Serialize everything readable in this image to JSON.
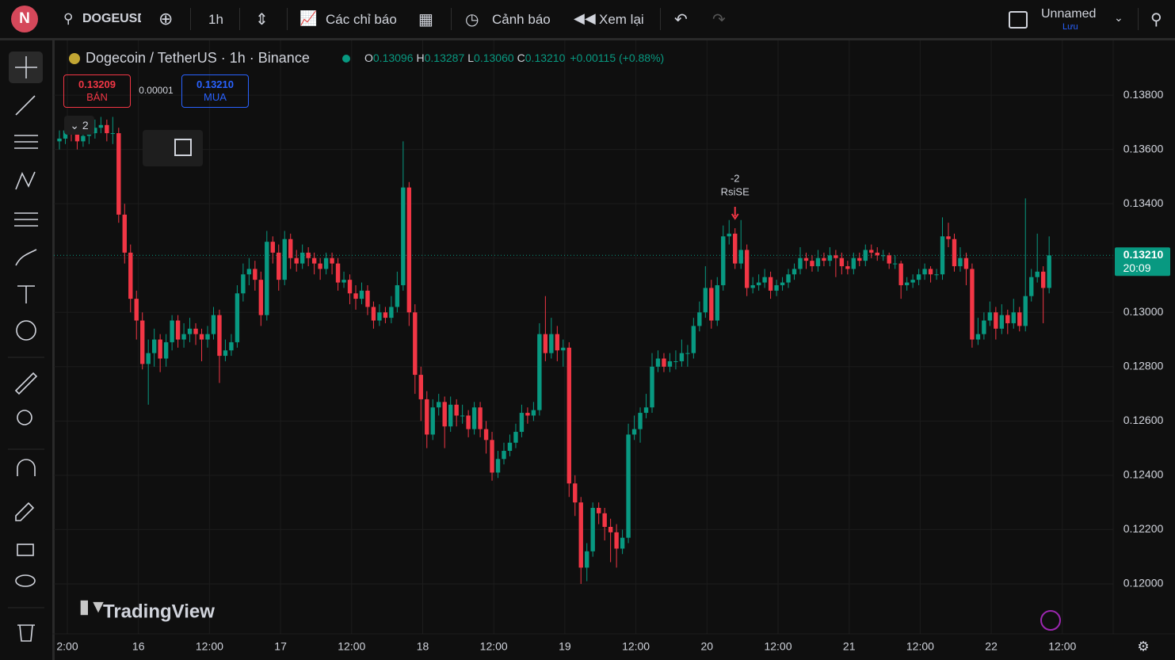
{
  "toolbar": {
    "avatar": "N",
    "symbol": "DOGEUSD",
    "interval": "1h",
    "indicators": "Các chỉ báo",
    "alerts": "Cảnh báo",
    "replay": "Xem lại",
    "layout_name": "Unnamed",
    "save": "Lưu"
  },
  "legend": {
    "title": "Dogecoin / TetherUS · 1h · Binance",
    "o_label": "O",
    "o": "0.13096",
    "h_label": "H",
    "h": "0.13287",
    "l_label": "L",
    "l": "0.13060",
    "c_label": "C",
    "c": "0.13210",
    "change": "+0.00115 (+0.88%)"
  },
  "trade": {
    "sell_price": "0.13209",
    "sell": "BÁN",
    "spread": "0.00001",
    "buy_price": "0.13210",
    "buy": "MUA"
  },
  "indicator_count": "2",
  "watermark": "TradingView",
  "chart_data": {
    "type": "candlestick",
    "up_color": "#089981",
    "down_color": "#f23645",
    "ylim": [
      0.11816,
      0.1399
    ],
    "yticks": [
      {
        "value": 0.12,
        "label": "0.12000"
      },
      {
        "value": 0.122,
        "label": "0.12200"
      },
      {
        "value": 0.124,
        "label": "0.12400"
      },
      {
        "value": 0.126,
        "label": "0.12600"
      },
      {
        "value": 0.128,
        "label": "0.12800"
      },
      {
        "value": 0.13,
        "label": "0.13000"
      },
      {
        "value": 0.132,
        "label": "0.13200"
      },
      {
        "value": 0.134,
        "label": "0.13400"
      },
      {
        "value": 0.136,
        "label": "0.13600"
      },
      {
        "value": 0.138,
        "label": "0.13800"
      }
    ],
    "x_labels": [
      "2:00",
      "16",
      "12:00",
      "17",
      "12:00",
      "18",
      "12:00",
      "19",
      "12:00",
      "20",
      "12:00",
      "21",
      "12:00",
      "22",
      "12:00"
    ],
    "last_price": {
      "value": 0.1321,
      "label": "0.13210",
      "countdown": "20:09"
    },
    "annotation": {
      "value": "-2",
      "label": "RsiSE"
    },
    "candles": [
      [
        0.1363,
        0.1367,
        0.136,
        0.1364
      ],
      [
        0.1364,
        0.1369,
        0.1362,
        0.1367
      ],
      [
        0.1367,
        0.1369,
        0.1363,
        0.1366
      ],
      [
        0.1366,
        0.1368,
        0.136,
        0.1363
      ],
      [
        0.1363,
        0.1367,
        0.1361,
        0.1365
      ],
      [
        0.1365,
        0.1368,
        0.1362,
        0.1366
      ],
      [
        0.1366,
        0.1371,
        0.1364,
        0.1368
      ],
      [
        0.1368,
        0.1372,
        0.1366,
        0.1369
      ],
      [
        0.1369,
        0.1371,
        0.1363,
        0.1366
      ],
      [
        0.1366,
        0.1372,
        0.1362,
        0.1366
      ],
      [
        0.1366,
        0.1368,
        0.1333,
        0.1336
      ],
      [
        0.1336,
        0.134,
        0.1318,
        0.1322
      ],
      [
        0.1322,
        0.1325,
        0.13,
        0.1305
      ],
      [
        0.1305,
        0.1308,
        0.129,
        0.1297
      ],
      [
        0.1297,
        0.13,
        0.1279,
        0.1281
      ],
      [
        0.1281,
        0.129,
        0.1266,
        0.1285
      ],
      [
        0.1285,
        0.1294,
        0.128,
        0.129
      ],
      [
        0.129,
        0.1292,
        0.1278,
        0.1283
      ],
      [
        0.1283,
        0.1292,
        0.128,
        0.1289
      ],
      [
        0.1289,
        0.1299,
        0.1286,
        0.1297
      ],
      [
        0.1297,
        0.1299,
        0.1287,
        0.129
      ],
      [
        0.129,
        0.1296,
        0.1287,
        0.1292
      ],
      [
        0.1292,
        0.1298,
        0.1289,
        0.1294
      ],
      [
        0.1294,
        0.1296,
        0.1288,
        0.1292
      ],
      [
        0.1292,
        0.1294,
        0.1282,
        0.129
      ],
      [
        0.129,
        0.1295,
        0.1287,
        0.1292
      ],
      [
        0.1292,
        0.1302,
        0.129,
        0.1299
      ],
      [
        0.1299,
        0.1301,
        0.1274,
        0.1284
      ],
      [
        0.1284,
        0.129,
        0.1282,
        0.1286
      ],
      [
        0.1286,
        0.1292,
        0.1284,
        0.1289
      ],
      [
        0.1289,
        0.131,
        0.1287,
        0.1307
      ],
      [
        0.1307,
        0.1318,
        0.1304,
        0.1314
      ],
      [
        0.1314,
        0.132,
        0.131,
        0.1316
      ],
      [
        0.1316,
        0.1319,
        0.1308,
        0.1312
      ],
      [
        0.1312,
        0.1315,
        0.1295,
        0.1299
      ],
      [
        0.1299,
        0.133,
        0.1297,
        0.1326
      ],
      [
        0.1326,
        0.1328,
        0.1318,
        0.1322
      ],
      [
        0.1322,
        0.1325,
        0.1308,
        0.1312
      ],
      [
        0.1312,
        0.133,
        0.131,
        0.1327
      ],
      [
        0.1327,
        0.1329,
        0.1316,
        0.132
      ],
      [
        0.132,
        0.1323,
        0.1315,
        0.1318
      ],
      [
        0.1318,
        0.1325,
        0.1316,
        0.1322
      ],
      [
        0.1322,
        0.1324,
        0.1317,
        0.132
      ],
      [
        0.132,
        0.1322,
        0.1314,
        0.1318
      ],
      [
        0.1318,
        0.132,
        0.1312,
        0.1316
      ],
      [
        0.1316,
        0.1322,
        0.1314,
        0.132
      ],
      [
        0.132,
        0.1322,
        0.1314,
        0.1318
      ],
      [
        0.1318,
        0.132,
        0.1308,
        0.1311
      ],
      [
        0.1311,
        0.1315,
        0.1309,
        0.1312
      ],
      [
        0.1312,
        0.1314,
        0.1303,
        0.1307
      ],
      [
        0.1307,
        0.131,
        0.1301,
        0.1305
      ],
      [
        0.1305,
        0.1311,
        0.1303,
        0.1308
      ],
      [
        0.1308,
        0.131,
        0.1299,
        0.1302
      ],
      [
        0.1302,
        0.1304,
        0.1294,
        0.1297
      ],
      [
        0.1297,
        0.1303,
        0.1295,
        0.13
      ],
      [
        0.13,
        0.1302,
        0.1296,
        0.1298
      ],
      [
        0.1298,
        0.1306,
        0.1296,
        0.1302
      ],
      [
        0.1302,
        0.1315,
        0.13,
        0.131
      ],
      [
        0.131,
        0.1363,
        0.1308,
        0.1346
      ],
      [
        0.1346,
        0.1348,
        0.1295,
        0.13
      ],
      [
        0.13,
        0.1303,
        0.127,
        0.1277
      ],
      [
        0.1277,
        0.128,
        0.126,
        0.1268
      ],
      [
        0.1268,
        0.1271,
        0.125,
        0.1255
      ],
      [
        0.1255,
        0.1268,
        0.1253,
        0.1265
      ],
      [
        0.1265,
        0.127,
        0.1262,
        0.1267
      ],
      [
        0.1267,
        0.1269,
        0.125,
        0.1258
      ],
      [
        0.1258,
        0.1269,
        0.1256,
        0.1266
      ],
      [
        0.1266,
        0.1268,
        0.1258,
        0.1262
      ],
      [
        0.1262,
        0.1266,
        0.1259,
        0.1262
      ],
      [
        0.1262,
        0.1264,
        0.1254,
        0.1257
      ],
      [
        0.1257,
        0.1267,
        0.1255,
        0.1265
      ],
      [
        0.1265,
        0.1267,
        0.1254,
        0.1257
      ],
      [
        0.1257,
        0.126,
        0.1248,
        0.1253
      ],
      [
        0.1253,
        0.1256,
        0.1238,
        0.1241
      ],
      [
        0.1241,
        0.1249,
        0.1239,
        0.1246
      ],
      [
        0.1246,
        0.1252,
        0.1244,
        0.1249
      ],
      [
        0.1249,
        0.1255,
        0.1247,
        0.1252
      ],
      [
        0.1252,
        0.1259,
        0.125,
        0.1256
      ],
      [
        0.1256,
        0.1266,
        0.1254,
        0.1263
      ],
      [
        0.1263,
        0.1265,
        0.1259,
        0.1262
      ],
      [
        0.1262,
        0.1267,
        0.126,
        0.1264
      ],
      [
        0.1264,
        0.1296,
        0.1262,
        0.1292
      ],
      [
        0.1292,
        0.1306,
        0.1282,
        0.1285
      ],
      [
        0.1285,
        0.1298,
        0.1283,
        0.1292
      ],
      [
        0.1292,
        0.1295,
        0.1282,
        0.1286
      ],
      [
        0.1286,
        0.129,
        0.128,
        0.1287
      ],
      [
        0.1287,
        0.1289,
        0.1232,
        0.1237
      ],
      [
        0.1237,
        0.124,
        0.1225,
        0.123
      ],
      [
        0.123,
        0.1232,
        0.12,
        0.1206
      ],
      [
        0.1206,
        0.1215,
        0.1201,
        0.1212
      ],
      [
        0.1212,
        0.123,
        0.121,
        0.1228
      ],
      [
        0.1228,
        0.123,
        0.1222,
        0.1226
      ],
      [
        0.1226,
        0.1228,
        0.1216,
        0.1221
      ],
      [
        0.1221,
        0.1224,
        0.1208,
        0.1219
      ],
      [
        0.1219,
        0.1222,
        0.1206,
        0.1213
      ],
      [
        0.1213,
        0.122,
        0.1211,
        0.1217
      ],
      [
        0.1217,
        0.1259,
        0.1215,
        0.1255
      ],
      [
        0.1255,
        0.1262,
        0.1253,
        0.1257
      ],
      [
        0.1257,
        0.1265,
        0.1252,
        0.1263
      ],
      [
        0.1263,
        0.127,
        0.1261,
        0.1265
      ],
      [
        0.1265,
        0.1285,
        0.1263,
        0.128
      ],
      [
        0.128,
        0.1286,
        0.1278,
        0.1283
      ],
      [
        0.1283,
        0.1285,
        0.1278,
        0.128
      ],
      [
        0.128,
        0.1285,
        0.1278,
        0.1282
      ],
      [
        0.1282,
        0.1286,
        0.1279,
        0.1282
      ],
      [
        0.1282,
        0.129,
        0.128,
        0.1285
      ],
      [
        0.1285,
        0.1288,
        0.128,
        0.1285
      ],
      [
        0.1285,
        0.1298,
        0.1283,
        0.1295
      ],
      [
        0.1295,
        0.1304,
        0.1293,
        0.13
      ],
      [
        0.13,
        0.1317,
        0.1298,
        0.1309
      ],
      [
        0.1309,
        0.1312,
        0.1294,
        0.1297
      ],
      [
        0.1297,
        0.1313,
        0.1295,
        0.131
      ],
      [
        0.131,
        0.1332,
        0.1308,
        0.1328
      ],
      [
        0.1328,
        0.1334,
        0.1325,
        0.1329
      ],
      [
        0.1329,
        0.1331,
        0.1316,
        0.1318
      ],
      [
        0.1318,
        0.1334,
        0.1316,
        0.1323
      ],
      [
        0.1323,
        0.1325,
        0.1306,
        0.1309
      ],
      [
        0.1309,
        0.1313,
        0.1307,
        0.131
      ],
      [
        0.131,
        0.1314,
        0.1308,
        0.1311
      ],
      [
        0.1311,
        0.1316,
        0.1309,
        0.1313
      ],
      [
        0.1313,
        0.1315,
        0.1305,
        0.1308
      ],
      [
        0.1308,
        0.1312,
        0.1306,
        0.131
      ],
      [
        0.131,
        0.1313,
        0.1308,
        0.1311
      ],
      [
        0.1311,
        0.1316,
        0.1309,
        0.1314
      ],
      [
        0.1314,
        0.1318,
        0.1312,
        0.1316
      ],
      [
        0.1316,
        0.1324,
        0.1314,
        0.132
      ],
      [
        0.132,
        0.1322,
        0.1316,
        0.1319
      ],
      [
        0.1319,
        0.1321,
        0.1315,
        0.1317
      ],
      [
        0.1317,
        0.1323,
        0.1315,
        0.132
      ],
      [
        0.132,
        0.1322,
        0.1317,
        0.1319
      ],
      [
        0.1319,
        0.1324,
        0.1317,
        0.1321
      ],
      [
        0.1321,
        0.1323,
        0.1313,
        0.132
      ],
      [
        0.132,
        0.1322,
        0.1314,
        0.1317
      ],
      [
        0.1317,
        0.1319,
        0.1314,
        0.1316
      ],
      [
        0.1316,
        0.1322,
        0.1314,
        0.132
      ],
      [
        0.132,
        0.1322,
        0.1317,
        0.1319
      ],
      [
        0.1319,
        0.1325,
        0.1317,
        0.1323
      ],
      [
        0.1323,
        0.1325,
        0.132,
        0.1322
      ],
      [
        0.1322,
        0.1324,
        0.1319,
        0.1321
      ],
      [
        0.1321,
        0.1323,
        0.1319,
        0.1321
      ],
      [
        0.1321,
        0.1322,
        0.1316,
        0.1318
      ],
      [
        0.1318,
        0.1321,
        0.1316,
        0.1318
      ],
      [
        0.1318,
        0.1319,
        0.1305,
        0.131
      ],
      [
        0.131,
        0.1313,
        0.1308,
        0.1311
      ],
      [
        0.1311,
        0.1314,
        0.1309,
        0.1312
      ],
      [
        0.1312,
        0.1316,
        0.131,
        0.1314
      ],
      [
        0.1314,
        0.1318,
        0.1312,
        0.1316
      ],
      [
        0.1316,
        0.1317,
        0.1311,
        0.1314
      ],
      [
        0.1314,
        0.1316,
        0.1312,
        0.1314
      ],
      [
        0.1314,
        0.1335,
        0.1312,
        0.1328
      ],
      [
        0.1328,
        0.1333,
        0.1324,
        0.1327
      ],
      [
        0.1327,
        0.1329,
        0.1315,
        0.1317
      ],
      [
        0.1317,
        0.1324,
        0.1315,
        0.132
      ],
      [
        0.132,
        0.1322,
        0.131,
        0.1316
      ],
      [
        0.1316,
        0.1318,
        0.1287,
        0.129
      ],
      [
        0.129,
        0.1298,
        0.1288,
        0.1292
      ],
      [
        0.1292,
        0.13,
        0.129,
        0.1297
      ],
      [
        0.1297,
        0.1304,
        0.1295,
        0.13
      ],
      [
        0.13,
        0.1302,
        0.129,
        0.1294
      ],
      [
        0.1294,
        0.1303,
        0.1292,
        0.1299
      ],
      [
        0.1299,
        0.1301,
        0.1292,
        0.1296
      ],
      [
        0.1296,
        0.1305,
        0.1294,
        0.13
      ],
      [
        0.13,
        0.1302,
        0.1293,
        0.1295
      ],
      [
        0.1295,
        0.1342,
        0.1293,
        0.1306
      ],
      [
        0.1306,
        0.1316,
        0.1304,
        0.1313
      ],
      [
        0.1313,
        0.1329,
        0.1311,
        0.1315
      ],
      [
        0.1315,
        0.1317,
        0.1296,
        0.1309
      ],
      [
        0.1309,
        0.1328,
        0.1307,
        0.1321
      ]
    ]
  }
}
